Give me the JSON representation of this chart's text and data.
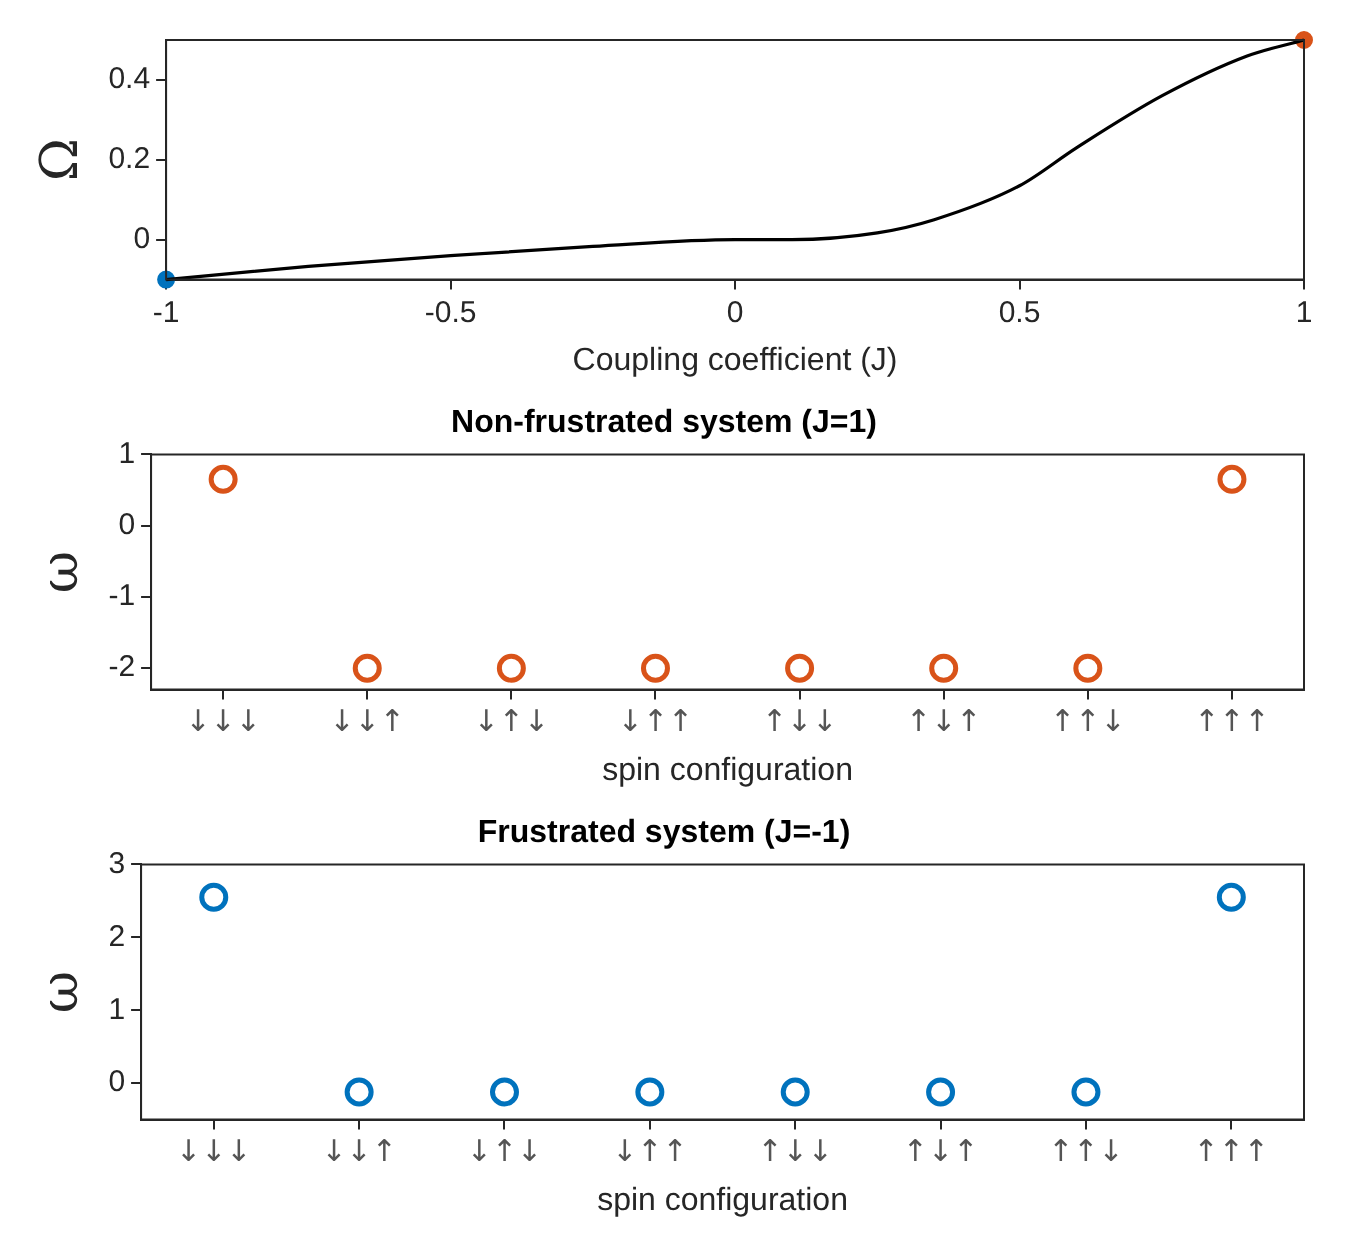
{
  "chart_data": [
    {
      "type": "line",
      "xlabel": "Coupling coefficient (J)",
      "ylabel": "Ω",
      "xlim": [
        -1,
        1
      ],
      "xticks": [
        -1,
        -0.5,
        0,
        0.5,
        1
      ],
      "ylim": [
        -0.1,
        0.5
      ],
      "yticks": [
        0,
        0.2,
        0.4
      ],
      "grid": false,
      "series": [
        {
          "type": "line",
          "color": "#000000",
          "marker": "none",
          "x": [
            -1,
            -0.75,
            -0.5,
            -0.25,
            0,
            0.1,
            0.25,
            0.35,
            0.5,
            0.6,
            0.75,
            0.9,
            1
          ],
          "values": [
            -0.1,
            -0.067,
            -0.04,
            -0.017,
            0,
            0,
            0.017,
            0.05,
            0.135,
            0.23,
            0.36,
            0.46,
            0.5
          ]
        },
        {
          "type": "scatter",
          "color": "#0072bd",
          "marker": "circle",
          "x": [
            -1
          ],
          "values": [
            -0.1
          ]
        },
        {
          "type": "scatter",
          "color": "#d95319",
          "marker": "circle",
          "x": [
            1
          ],
          "values": [
            0.5
          ]
        }
      ]
    },
    {
      "type": "scatter",
      "title": "Non-frustrated system (J=1)",
      "xlabel": "spin configuration",
      "ylabel": "ω",
      "categories": [
        "↓↓↓",
        "↓↓↑",
        "↓↑↓",
        "↓↑↑",
        "↑↓↓",
        "↑↓↑",
        "↑↑↓",
        "↑↑↑"
      ],
      "ylim": [
        -2.3,
        1
      ],
      "yticks": [
        -2,
        -1,
        0,
        1
      ],
      "grid": false,
      "marker": "circle",
      "series": [
        {
          "color": "#d95319",
          "values": [
            0.65,
            -2,
            -2,
            -2,
            -2,
            -2,
            -2,
            0.65
          ]
        }
      ]
    },
    {
      "type": "scatter",
      "title": "Frustrated system (J=-1)",
      "xlabel": "spin configuration",
      "ylabel": "ω",
      "categories": [
        "↓↓↓",
        "↓↓↑",
        "↓↑↓",
        "↓↑↑",
        "↑↓↓",
        "↑↓↑",
        "↑↑↓",
        "↑↑↑"
      ],
      "ylim": [
        -0.5,
        3
      ],
      "yticks": [
        0,
        1,
        2,
        3
      ],
      "grid": false,
      "marker": "circle",
      "series": [
        {
          "color": "#0072bd",
          "values": [
            2.55,
            -0.12,
            -0.12,
            -0.12,
            -0.12,
            -0.12,
            -0.12,
            2.55
          ]
        }
      ]
    }
  ]
}
